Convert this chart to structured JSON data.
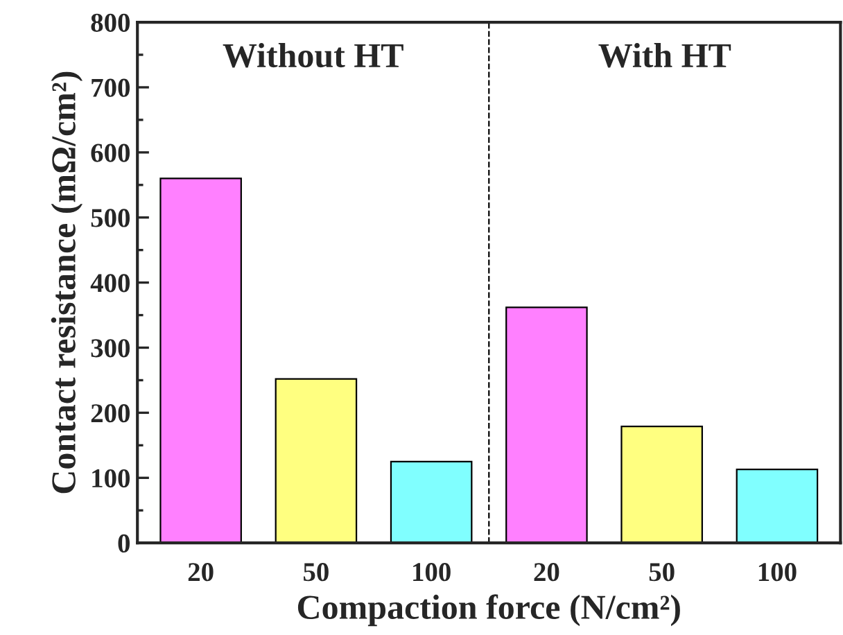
{
  "chart_data": {
    "type": "bar",
    "xlabel": "Compaction force (N/cm²)",
    "ylabel": "Contact resistance (mΩ/cm²)",
    "categories": [
      "20",
      "50",
      "100",
      "20",
      "50",
      "100"
    ],
    "values": [
      560,
      252,
      125,
      362,
      179,
      113
    ],
    "colors": [
      "#ff80ff",
      "#ffff80",
      "#80ffff",
      "#ff80ff",
      "#ffff80",
      "#80ffff"
    ],
    "ylim": [
      0,
      800
    ],
    "yticks": [
      0,
      100,
      200,
      300,
      400,
      500,
      600,
      700,
      800
    ],
    "annotations": [
      "Without HT",
      "With HT"
    ],
    "grid": false,
    "legend": false
  }
}
